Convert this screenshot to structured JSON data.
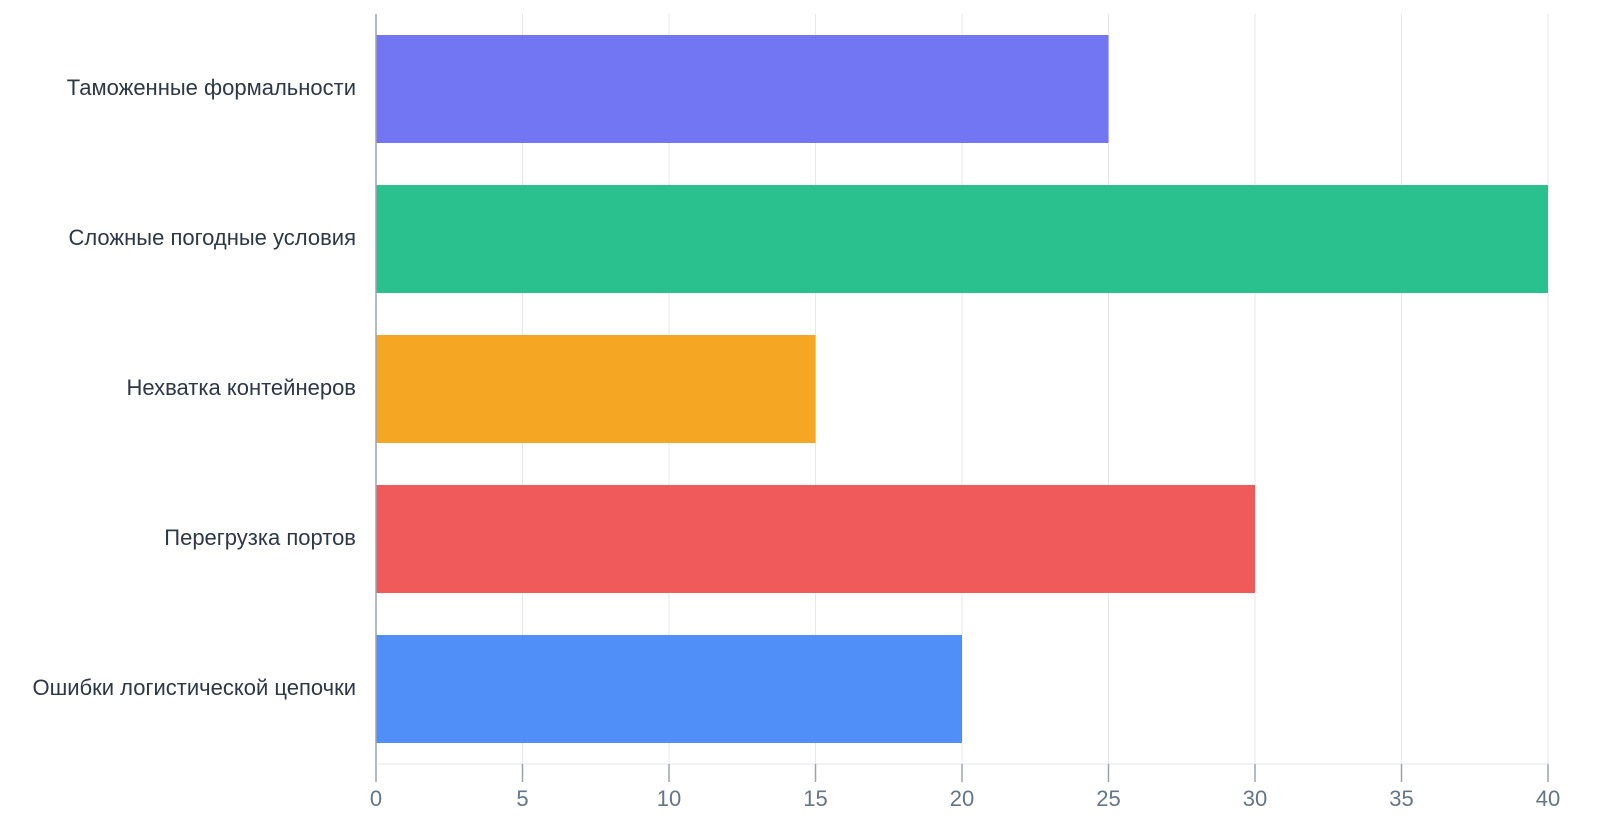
{
  "chart_data": {
    "type": "bar",
    "orientation": "horizontal",
    "title": "",
    "xlabel": "",
    "ylabel": "",
    "categories": [
      "Таможенные формальности",
      "Сложные погодные условия",
      "Нехватка контейнеров",
      "Перегрузка портов",
      "Ошибки логистической цепочки"
    ],
    "values": [
      25,
      40,
      15,
      30,
      20
    ],
    "colors": [
      "#7376f3",
      "#2ac18e",
      "#f5a623",
      "#f05a5a",
      "#4f8ff7"
    ],
    "xlim": [
      0,
      40
    ],
    "xticks": [
      0,
      5,
      10,
      15,
      20,
      25,
      30,
      35,
      40
    ],
    "grid": true,
    "legend": "none"
  }
}
